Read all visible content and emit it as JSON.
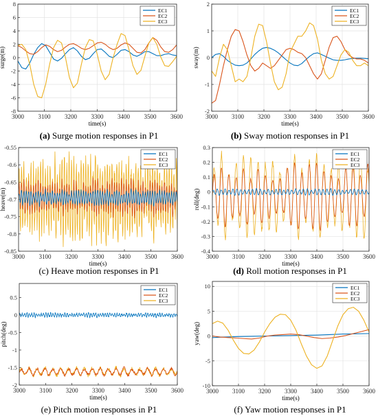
{
  "series_names": [
    "EC1",
    "EC2",
    "EC3"
  ],
  "colors": {
    "EC1": "#0072bd",
    "EC2": "#d95319",
    "EC3": "#edb120"
  },
  "chart_data": [
    {
      "type": "line",
      "caption_letter": "(a)",
      "caption_text": " Surge motion responses in P1",
      "xlabel": "time(s)",
      "ylabel": "surge(m)",
      "xlim": [
        3000,
        3600
      ],
      "ylim": [
        -8,
        8
      ],
      "xticks": [
        "3000",
        "3100",
        "3200",
        "3300",
        "3400",
        "3500",
        "3600"
      ],
      "yticks": [
        "-8",
        "-6",
        "-4",
        "-2",
        "0",
        "2",
        "4",
        "6",
        "8"
      ],
      "grid": true,
      "legend": "top-right",
      "series": [
        {
          "name": "EC1",
          "x": [
            3000,
            3015,
            3030,
            3045,
            3060,
            3075,
            3090,
            3105,
            3120,
            3135,
            3150,
            3165,
            3180,
            3195,
            3210,
            3225,
            3240,
            3255,
            3270,
            3285,
            3300,
            3315,
            3330,
            3345,
            3360,
            3375,
            3390,
            3405,
            3420,
            3435,
            3450,
            3465,
            3480,
            3495,
            3510,
            3525,
            3540,
            3555,
            3570,
            3585,
            3600
          ],
          "y": [
            -0.5,
            -1.5,
            -1.7,
            -0.8,
            0.5,
            1.5,
            2.1,
            1.8,
            0.8,
            -0.2,
            -0.5,
            -0.1,
            0.6,
            1.2,
            1.5,
            1.0,
            0.2,
            -0.3,
            -0.1,
            0.6,
            1.2,
            1.3,
            0.8,
            0.2,
            0.0,
            0.5,
            1.1,
            1.2,
            0.9,
            0.4,
            0.2,
            0.5,
            0.9,
            0.9,
            0.6,
            0.3,
            0.3,
            0.5,
            0.6,
            0.4,
            0.3
          ]
        },
        {
          "name": "EC2",
          "x": [
            3000,
            3015,
            3030,
            3045,
            3060,
            3075,
            3090,
            3105,
            3120,
            3135,
            3150,
            3165,
            3180,
            3195,
            3210,
            3225,
            3240,
            3255,
            3270,
            3285,
            3300,
            3315,
            3330,
            3345,
            3360,
            3375,
            3390,
            3405,
            3420,
            3435,
            3450,
            3465,
            3480,
            3495,
            3510,
            3525,
            3540,
            3555,
            3570,
            3585,
            3600
          ],
          "y": [
            1.8,
            1.5,
            1.0,
            0.6,
            0.5,
            0.9,
            1.5,
            1.9,
            1.7,
            1.2,
            0.9,
            1.1,
            1.6,
            2.0,
            2.1,
            1.8,
            1.4,
            1.2,
            1.4,
            1.8,
            2.2,
            2.3,
            2.0,
            1.5,
            1.2,
            1.4,
            1.9,
            2.2,
            2.0,
            1.4,
            0.8,
            0.7,
            1.2,
            2.2,
            3.0,
            2.6,
            1.6,
            0.9,
            0.8,
            1.2,
            1.9
          ]
        },
        {
          "name": "EC3",
          "x": [
            3000,
            3015,
            3030,
            3045,
            3060,
            3075,
            3090,
            3105,
            3120,
            3135,
            3150,
            3165,
            3180,
            3195,
            3210,
            3225,
            3240,
            3255,
            3270,
            3285,
            3300,
            3315,
            3330,
            3345,
            3360,
            3375,
            3390,
            3405,
            3420,
            3435,
            3450,
            3465,
            3480,
            3495,
            3510,
            3525,
            3540,
            3555,
            3570,
            3585,
            3600
          ],
          "y": [
            1.8,
            2.0,
            1.2,
            -1.0,
            -4.0,
            -5.8,
            -6.0,
            -4.0,
            -1.0,
            1.5,
            2.6,
            2.2,
            0.0,
            -3.0,
            -4.5,
            -3.8,
            -1.0,
            1.5,
            2.7,
            2.5,
            0.5,
            -2.0,
            -3.3,
            -2.5,
            0.0,
            2.0,
            3.6,
            3.3,
            1.2,
            -1.2,
            -2.5,
            -1.9,
            0.2,
            2.2,
            3.0,
            2.0,
            0.1,
            -1.2,
            -1.3,
            -0.6,
            0.2
          ]
        }
      ]
    },
    {
      "type": "line",
      "caption_letter": "(b)",
      "caption_text": " Sway motion responses in P1",
      "xlabel": "time(s)",
      "ylabel": "sway(m)",
      "xlim": [
        3000,
        3600
      ],
      "ylim": [
        -2,
        2
      ],
      "xticks": [
        "3000",
        "3100",
        "3200",
        "3300",
        "3400",
        "3500",
        "3600"
      ],
      "yticks": [
        "-2",
        "-1",
        "0",
        "1",
        "2"
      ],
      "grid": true,
      "legend": "top-right",
      "series": [
        {
          "name": "EC1",
          "x": [
            3000,
            3015,
            3030,
            3045,
            3060,
            3075,
            3090,
            3105,
            3120,
            3135,
            3150,
            3165,
            3180,
            3195,
            3210,
            3225,
            3240,
            3255,
            3270,
            3285,
            3300,
            3315,
            3330,
            3345,
            3360,
            3375,
            3390,
            3405,
            3420,
            3435,
            3450,
            3465,
            3480,
            3495,
            3510,
            3525,
            3540,
            3555,
            3570,
            3585,
            3600
          ],
          "y": [
            0.0,
            0.12,
            0.15,
            0.05,
            -0.1,
            -0.2,
            -0.28,
            -0.3,
            -0.28,
            -0.2,
            -0.05,
            0.12,
            0.25,
            0.35,
            0.38,
            0.35,
            0.28,
            0.18,
            0.05,
            -0.08,
            -0.2,
            -0.28,
            -0.3,
            -0.22,
            -0.08,
            0.05,
            0.15,
            0.18,
            0.12,
            0.05,
            -0.02,
            -0.08,
            -0.1,
            -0.1,
            -0.08,
            -0.05,
            -0.03,
            -0.02,
            -0.02,
            -0.03,
            -0.04
          ]
        },
        {
          "name": "EC2",
          "x": [
            3000,
            3015,
            3030,
            3045,
            3060,
            3075,
            3090,
            3105,
            3120,
            3135,
            3150,
            3165,
            3180,
            3195,
            3210,
            3225,
            3240,
            3255,
            3270,
            3285,
            3300,
            3315,
            3330,
            3345,
            3360,
            3375,
            3390,
            3405,
            3420,
            3435,
            3450,
            3465,
            3480,
            3495,
            3510,
            3525,
            3540,
            3555,
            3570,
            3585,
            3600
          ],
          "y": [
            -1.7,
            -1.6,
            -1.0,
            -0.3,
            0.3,
            0.8,
            1.05,
            1.0,
            0.6,
            0.1,
            -0.3,
            -0.5,
            -0.4,
            -0.2,
            -0.3,
            -0.4,
            -0.3,
            -0.1,
            0.1,
            0.3,
            0.35,
            0.3,
            0.2,
            0.15,
            0.0,
            -0.3,
            -0.6,
            -0.8,
            -0.6,
            -0.1,
            0.4,
            0.75,
            0.8,
            0.6,
            0.3,
            0.1,
            0.0,
            -0.05,
            -0.05,
            -0.1,
            -0.2
          ]
        },
        {
          "name": "EC3",
          "x": [
            3000,
            3015,
            3030,
            3045,
            3060,
            3075,
            3090,
            3105,
            3120,
            3135,
            3150,
            3165,
            3180,
            3195,
            3210,
            3225,
            3240,
            3255,
            3270,
            3285,
            3300,
            3315,
            3330,
            3345,
            3360,
            3375,
            3390,
            3405,
            3420,
            3435,
            3450,
            3465,
            3480,
            3495,
            3510,
            3525,
            3540,
            3555,
            3570,
            3585,
            3600
          ],
          "y": [
            -0.5,
            -0.7,
            0.0,
            0.5,
            0.3,
            -0.3,
            -0.9,
            -0.8,
            -0.9,
            -0.7,
            0.0,
            0.8,
            1.25,
            1.2,
            0.6,
            -0.2,
            -0.9,
            -1.2,
            -1.1,
            -0.6,
            0.2,
            0.5,
            0.8,
            0.8,
            1.0,
            1.3,
            1.2,
            0.7,
            -0.1,
            -0.6,
            -0.8,
            -0.7,
            -0.3,
            0.1,
            0.3,
            0.2,
            -0.1,
            -0.3,
            -0.3,
            -0.2,
            -0.3
          ]
        }
      ]
    },
    {
      "type": "line",
      "caption_letter": "(c)",
      "caption_text": " Heave motion responses in P1",
      "xlabel": "time(s)",
      "ylabel": "heave(m)",
      "xlim": [
        3000,
        3600
      ],
      "ylim": [
        -0.85,
        -0.55
      ],
      "xticks": [
        "3000",
        "3100",
        "3200",
        "3300",
        "3400",
        "3500",
        "3600"
      ],
      "yticks": [
        "-0.85",
        "-0.8",
        "-0.75",
        "-0.7",
        "-0.65",
        "-0.6",
        "-0.55"
      ],
      "grid": false,
      "legend": "top-right",
      "oscillation": [
        {
          "name": "EC1",
          "center": -0.695,
          "amplitude": 0.02,
          "period": 9,
          "jitter": 0.006
        },
        {
          "name": "EC2",
          "center": -0.695,
          "amplitude": 0.045,
          "period": 9,
          "jitter": 0.015
        },
        {
          "name": "EC3",
          "center": -0.695,
          "amplitude": 0.11,
          "period": 9,
          "jitter": 0.03
        }
      ]
    },
    {
      "type": "line",
      "caption_letter": "(d)",
      "caption_text": " Roll motion responses in P1",
      "xlabel": "time(s)",
      "ylabel": "roll(deg)",
      "xlim": [
        3000,
        3600
      ],
      "ylim": [
        -0.4,
        0.3
      ],
      "xticks": [
        "3000",
        "3100",
        "3200",
        "3300",
        "3400",
        "3500",
        "3600"
      ],
      "yticks": [
        "-0.4",
        "-0.3",
        "-0.2",
        "-0.1",
        "0",
        "0.1",
        "0.2",
        "0.3"
      ],
      "grid": true,
      "legend": "top-right",
      "oscillation": [
        {
          "name": "EC1",
          "center": 0.0,
          "amplitude": 0.02,
          "period": 15,
          "jitter": 0.003
        },
        {
          "name": "EC2",
          "center": -0.03,
          "amplitude": 0.2,
          "period": 28,
          "jitter": 0.01
        },
        {
          "name": "EC3",
          "center": -0.03,
          "amplitude": 0.26,
          "period": 28,
          "jitter": 0.02
        }
      ]
    },
    {
      "type": "line",
      "caption_letter": "(e)",
      "caption_text": " Pitch motion responses in P1",
      "xlabel": "time(s)",
      "ylabel": "pitch(deg)",
      "xlim": [
        3000,
        3600
      ],
      "ylim": [
        -2,
        0.9
      ],
      "xticks": [
        "3000",
        "3100",
        "3200",
        "3300",
        "3400",
        "3500",
        "3600"
      ],
      "yticks": [
        "-2",
        "-1.5",
        "-1",
        "-0.5",
        "0",
        "0.5"
      ],
      "grid": false,
      "legend": "top-right",
      "oscillation": [
        {
          "name": "EC1",
          "center": 0.0,
          "amplitude": 0.05,
          "period": 9,
          "jitter": 0.03
        },
        {
          "name": "EC2",
          "center": -1.62,
          "amplitude": 0.1,
          "period": 30,
          "jitter": 0.04
        },
        {
          "name": "EC3",
          "center": -1.62,
          "amplitude": 0.12,
          "period": 30,
          "jitter": 0.05
        }
      ]
    },
    {
      "type": "line",
      "caption_letter": "(f)",
      "caption_text": " Yaw motion responses in P1",
      "xlabel": "time(s)",
      "ylabel": "yaw(deg)",
      "xlim": [
        3000,
        3600
      ],
      "ylim": [
        -10,
        11
      ],
      "xticks": [
        "3000",
        "3100",
        "3200",
        "3300",
        "3400",
        "3500",
        "3600"
      ],
      "yticks": [
        "-10",
        "-5",
        "0",
        "5",
        "10"
      ],
      "grid": true,
      "legend": "top-right",
      "series": [
        {
          "name": "EC1",
          "x": [
            3000,
            3100,
            3200,
            3300,
            3400,
            3500,
            3600
          ],
          "y": [
            -0.3,
            -0.1,
            0.0,
            0.1,
            0.2,
            0.4,
            0.5
          ]
        },
        {
          "name": "EC2",
          "x": [
            3000,
            3030,
            3060,
            3090,
            3120,
            3150,
            3180,
            3210,
            3240,
            3270,
            3300,
            3330,
            3360,
            3390,
            3420,
            3450,
            3480,
            3510,
            3540,
            3570,
            3600
          ],
          "y": [
            0.0,
            -0.2,
            -0.3,
            -0.4,
            -0.5,
            -0.6,
            -0.4,
            0.0,
            0.2,
            0.3,
            0.4,
            0.3,
            0.0,
            -0.3,
            -0.5,
            -0.4,
            -0.2,
            0.1,
            0.5,
            0.9,
            1.3
          ]
        },
        {
          "name": "EC3",
          "x": [
            3000,
            3020,
            3040,
            3060,
            3080,
            3100,
            3120,
            3140,
            3160,
            3180,
            3200,
            3220,
            3240,
            3260,
            3280,
            3300,
            3320,
            3340,
            3360,
            3380,
            3400,
            3420,
            3440,
            3460,
            3480,
            3500,
            3520,
            3540,
            3560,
            3580,
            3600
          ],
          "y": [
            2.5,
            3.0,
            2.6,
            1.2,
            -0.8,
            -2.5,
            -3.5,
            -3.6,
            -2.8,
            -1.2,
            0.8,
            2.5,
            3.8,
            4.4,
            4.3,
            3.2,
            1.2,
            -1.5,
            -4.0,
            -5.8,
            -6.5,
            -6.0,
            -4.0,
            -1.0,
            2.0,
            4.3,
            5.5,
            5.8,
            5.0,
            3.2,
            0.8
          ]
        }
      ]
    }
  ]
}
